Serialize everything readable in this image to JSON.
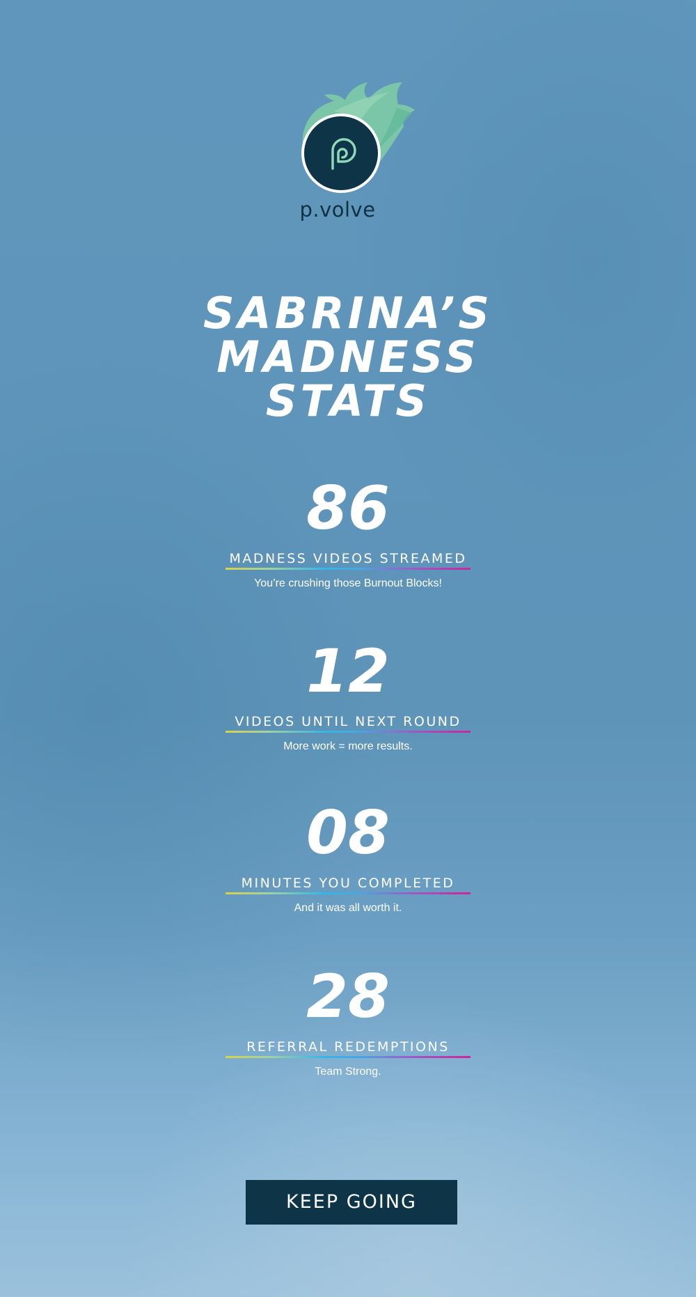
{
  "brand": {
    "name": "p.volve",
    "icon": "pvolve-flame-logo-icon",
    "colors": {
      "flame": "#7cc8a8",
      "circle": "#0d3547",
      "mark": "#8fd8b8"
    }
  },
  "title": {
    "lines": [
      "SABRINA’S",
      "MADNESS",
      "STATS"
    ]
  },
  "stats": [
    {
      "value": "86",
      "label": "MADNESS VIDEOS STREAMED",
      "subtext": "You’re crushing those Burnout Blocks!"
    },
    {
      "value": "12",
      "label": "VIDEOS UNTIL NEXT ROUND",
      "subtext": "More work = more results."
    },
    {
      "value": "08",
      "label": "MINUTES YOU COMPLETED",
      "subtext": "And it was all worth it."
    },
    {
      "value": "28",
      "label": "REFERRAL REDEMPTIONS",
      "subtext": "Team Strong."
    }
  ],
  "cta": {
    "label": "KEEP GOING",
    "color": "#0d3547"
  },
  "colors": {
    "background_top": "#6096bb",
    "background_bottom": "#9bc1dc",
    "text": "#ffffff"
  }
}
